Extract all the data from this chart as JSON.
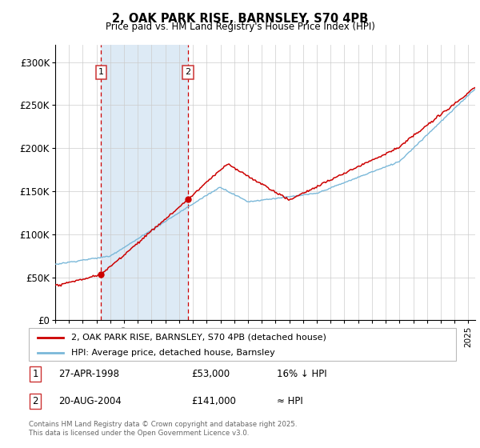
{
  "title": "2, OAK PARK RISE, BARNSLEY, S70 4PB",
  "subtitle": "Price paid vs. HM Land Registry's House Price Index (HPI)",
  "hpi_color": "#7ab8d9",
  "price_color": "#cc0000",
  "shaded_color": "#ddeaf5",
  "purchase1_x": 1998.32,
  "purchase1_y": 53000,
  "purchase2_x": 2004.64,
  "purchase2_y": 141000,
  "ylim": [
    0,
    320000
  ],
  "yticks": [
    0,
    50000,
    100000,
    150000,
    200000,
    250000,
    300000
  ],
  "ytick_labels": [
    "£0",
    "£50K",
    "£100K",
    "£150K",
    "£200K",
    "£250K",
    "£300K"
  ],
  "xlim_left": 1995.0,
  "xlim_right": 2025.5,
  "legend_line1": "2, OAK PARK RISE, BARNSLEY, S70 4PB (detached house)",
  "legend_line2": "HPI: Average price, detached house, Barnsley",
  "annotation1_date": "27-APR-1998",
  "annotation1_price": "£53,000",
  "annotation1_hpi": "16% ↓ HPI",
  "annotation2_date": "20-AUG-2004",
  "annotation2_price": "£141,000",
  "annotation2_hpi": "≈ HPI",
  "footer": "Contains HM Land Registry data © Crown copyright and database right 2025.\nThis data is licensed under the Open Government Licence v3.0."
}
